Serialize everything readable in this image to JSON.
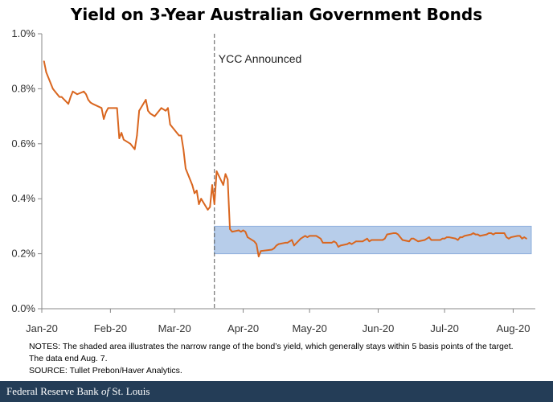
{
  "title": "Yield on 3-Year Australian Government Bonds",
  "notes": {
    "line1": "NOTES: The shaded area illustrates the narrow range of the bond’s yield, which generally stays within 5 basis points of the target.",
    "line2": "The data end Aug. 7.",
    "source": "SOURCE: Tullet Prebon/Haver Analytics."
  },
  "footer": {
    "part1": "Federal Reserve Bank ",
    "part2": "of",
    "part3": " St. Louis"
  },
  "colors": {
    "line": "#d9661f",
    "band": "#b7cdea",
    "band_edge": "#8fb0dc",
    "axis": "#888888",
    "grid": "#d9d9d9",
    "vline": "#555555",
    "footer_bg": "#243d57"
  },
  "chart_data": {
    "type": "line",
    "title": "Yield on 3-Year Australian Government Bonds",
    "xlabel": "",
    "ylabel": "",
    "ylim": [
      0,
      1.0
    ],
    "x_range": [
      "2020-01-01",
      "2020-08-11"
    ],
    "y_ticks": [
      0,
      0.2,
      0.4,
      0.6,
      0.8,
      1.0
    ],
    "y_tick_labels": [
      "0.0%",
      "0.2%",
      "0.4%",
      "0.6%",
      "0.8%",
      "1.0%"
    ],
    "x_ticks": [
      {
        "date": "2020-01-01",
        "label": "Jan-20"
      },
      {
        "date": "2020-02-01",
        "label": "Feb-20"
      },
      {
        "date": "2020-03-01",
        "label": "Mar-20"
      },
      {
        "date": "2020-04-01",
        "label": "Apr-20"
      },
      {
        "date": "2020-05-01",
        "label": "May-20"
      },
      {
        "date": "2020-06-01",
        "label": "Jun-20"
      },
      {
        "date": "2020-07-01",
        "label": "Jul-20"
      },
      {
        "date": "2020-08-01",
        "label": "Aug-20"
      }
    ],
    "grid": false,
    "annotations": [
      {
        "type": "vline",
        "date": "2020-03-19",
        "label": "YCC Announced"
      },
      {
        "type": "band",
        "from": "2020-03-19",
        "to": "2020-08-07",
        "ymin": 0.2,
        "ymax": 0.3
      }
    ],
    "series": [
      {
        "points": [
          [
            "2020-01-02",
            0.9
          ],
          [
            "2020-01-03",
            0.86
          ],
          [
            "2020-01-06",
            0.8
          ],
          [
            "2020-01-07",
            0.79
          ],
          [
            "2020-01-08",
            0.78
          ],
          [
            "2020-01-09",
            0.77
          ],
          [
            "2020-01-10",
            0.77
          ],
          [
            "2020-01-13",
            0.745
          ],
          [
            "2020-01-14",
            0.77
          ],
          [
            "2020-01-15",
            0.79
          ],
          [
            "2020-01-16",
            0.785
          ],
          [
            "2020-01-17",
            0.78
          ],
          [
            "2020-01-20",
            0.79
          ],
          [
            "2020-01-21",
            0.78
          ],
          [
            "2020-01-22",
            0.76
          ],
          [
            "2020-01-23",
            0.75
          ],
          [
            "2020-01-24",
            0.745
          ],
          [
            "2020-01-28",
            0.73
          ],
          [
            "2020-01-29",
            0.69
          ],
          [
            "2020-01-30",
            0.715
          ],
          [
            "2020-01-31",
            0.73
          ],
          [
            "2020-02-03",
            0.73
          ],
          [
            "2020-02-04",
            0.73
          ],
          [
            "2020-02-05",
            0.62
          ],
          [
            "2020-02-06",
            0.64
          ],
          [
            "2020-02-07",
            0.615
          ],
          [
            "2020-02-10",
            0.6
          ],
          [
            "2020-02-11",
            0.59
          ],
          [
            "2020-02-12",
            0.58
          ],
          [
            "2020-02-13",
            0.63
          ],
          [
            "2020-02-14",
            0.72
          ],
          [
            "2020-02-17",
            0.76
          ],
          [
            "2020-02-18",
            0.72
          ],
          [
            "2020-02-19",
            0.71
          ],
          [
            "2020-02-20",
            0.705
          ],
          [
            "2020-02-21",
            0.7
          ],
          [
            "2020-02-24",
            0.73
          ],
          [
            "2020-02-25",
            0.725
          ],
          [
            "2020-02-26",
            0.72
          ],
          [
            "2020-02-27",
            0.73
          ],
          [
            "2020-02-28",
            0.67
          ],
          [
            "2020-03-02",
            0.64
          ],
          [
            "2020-03-03",
            0.63
          ],
          [
            "2020-03-04",
            0.63
          ],
          [
            "2020-03-05",
            0.58
          ],
          [
            "2020-03-06",
            0.51
          ],
          [
            "2020-03-09",
            0.45
          ],
          [
            "2020-03-10",
            0.42
          ],
          [
            "2020-03-11",
            0.43
          ],
          [
            "2020-03-12",
            0.38
          ],
          [
            "2020-03-13",
            0.4
          ],
          [
            "2020-03-16",
            0.36
          ],
          [
            "2020-03-17",
            0.37
          ],
          [
            "2020-03-18",
            0.45
          ],
          [
            "2020-03-19",
            0.38
          ],
          [
            "2020-03-20",
            0.5
          ],
          [
            "2020-03-23",
            0.45
          ],
          [
            "2020-03-24",
            0.49
          ],
          [
            "2020-03-25",
            0.47
          ],
          [
            "2020-03-26",
            0.29
          ],
          [
            "2020-03-27",
            0.28
          ],
          [
            "2020-03-30",
            0.285
          ],
          [
            "2020-03-31",
            0.28
          ],
          [
            "2020-04-01",
            0.285
          ],
          [
            "2020-04-02",
            0.28
          ],
          [
            "2020-04-03",
            0.26
          ],
          [
            "2020-04-06",
            0.245
          ],
          [
            "2020-04-07",
            0.235
          ],
          [
            "2020-04-08",
            0.19
          ],
          [
            "2020-04-09",
            0.21
          ],
          [
            "2020-04-14",
            0.215
          ],
          [
            "2020-04-15",
            0.22
          ],
          [
            "2020-04-16",
            0.23
          ],
          [
            "2020-04-17",
            0.235
          ],
          [
            "2020-04-20",
            0.24
          ],
          [
            "2020-04-21",
            0.24
          ],
          [
            "2020-04-22",
            0.245
          ],
          [
            "2020-04-23",
            0.25
          ],
          [
            "2020-04-24",
            0.23
          ],
          [
            "2020-04-27",
            0.255
          ],
          [
            "2020-04-28",
            0.26
          ],
          [
            "2020-04-29",
            0.265
          ],
          [
            "2020-04-30",
            0.26
          ],
          [
            "2020-05-01",
            0.265
          ],
          [
            "2020-05-04",
            0.265
          ],
          [
            "2020-05-05",
            0.26
          ],
          [
            "2020-05-06",
            0.255
          ],
          [
            "2020-05-07",
            0.24
          ],
          [
            "2020-05-08",
            0.24
          ],
          [
            "2020-05-11",
            0.24
          ],
          [
            "2020-05-12",
            0.245
          ],
          [
            "2020-05-13",
            0.24
          ],
          [
            "2020-05-14",
            0.225
          ],
          [
            "2020-05-15",
            0.23
          ],
          [
            "2020-05-18",
            0.235
          ],
          [
            "2020-05-19",
            0.24
          ],
          [
            "2020-05-20",
            0.235
          ],
          [
            "2020-05-21",
            0.24
          ],
          [
            "2020-05-22",
            0.245
          ],
          [
            "2020-05-25",
            0.245
          ],
          [
            "2020-05-26",
            0.25
          ],
          [
            "2020-05-27",
            0.255
          ],
          [
            "2020-05-28",
            0.245
          ],
          [
            "2020-05-29",
            0.25
          ],
          [
            "2020-06-01",
            0.25
          ],
          [
            "2020-06-02",
            0.25
          ],
          [
            "2020-06-03",
            0.25
          ],
          [
            "2020-06-04",
            0.255
          ],
          [
            "2020-06-05",
            0.27
          ],
          [
            "2020-06-08",
            0.275
          ],
          [
            "2020-06-09",
            0.275
          ],
          [
            "2020-06-10",
            0.27
          ],
          [
            "2020-06-11",
            0.26
          ],
          [
            "2020-06-12",
            0.25
          ],
          [
            "2020-06-15",
            0.245
          ],
          [
            "2020-06-16",
            0.255
          ],
          [
            "2020-06-17",
            0.255
          ],
          [
            "2020-06-18",
            0.25
          ],
          [
            "2020-06-19",
            0.245
          ],
          [
            "2020-06-22",
            0.25
          ],
          [
            "2020-06-23",
            0.255
          ],
          [
            "2020-06-24",
            0.26
          ],
          [
            "2020-06-25",
            0.25
          ],
          [
            "2020-06-26",
            0.25
          ],
          [
            "2020-06-29",
            0.25
          ],
          [
            "2020-06-30",
            0.255
          ],
          [
            "2020-07-01",
            0.255
          ],
          [
            "2020-07-02",
            0.26
          ],
          [
            "2020-07-03",
            0.26
          ],
          [
            "2020-07-06",
            0.255
          ],
          [
            "2020-07-07",
            0.25
          ],
          [
            "2020-07-08",
            0.26
          ],
          [
            "2020-07-09",
            0.26
          ],
          [
            "2020-07-10",
            0.265
          ],
          [
            "2020-07-13",
            0.27
          ],
          [
            "2020-07-14",
            0.275
          ],
          [
            "2020-07-15",
            0.27
          ],
          [
            "2020-07-16",
            0.27
          ],
          [
            "2020-07-17",
            0.265
          ],
          [
            "2020-07-20",
            0.27
          ],
          [
            "2020-07-21",
            0.275
          ],
          [
            "2020-07-22",
            0.275
          ],
          [
            "2020-07-23",
            0.27
          ],
          [
            "2020-07-24",
            0.275
          ],
          [
            "2020-07-27",
            0.275
          ],
          [
            "2020-07-28",
            0.275
          ],
          [
            "2020-07-29",
            0.26
          ],
          [
            "2020-07-30",
            0.255
          ],
          [
            "2020-07-31",
            0.26
          ],
          [
            "2020-08-03",
            0.265
          ],
          [
            "2020-08-04",
            0.265
          ],
          [
            "2020-08-05",
            0.255
          ],
          [
            "2020-08-06",
            0.26
          ],
          [
            "2020-08-07",
            0.255
          ]
        ]
      }
    ]
  }
}
